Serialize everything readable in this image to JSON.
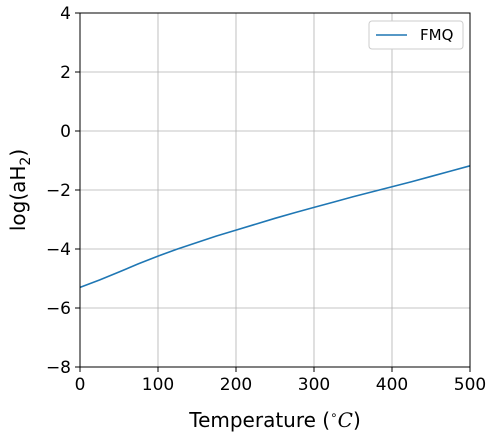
{
  "chart_data": {
    "type": "line",
    "title": "",
    "xlabel_main": "Temperature (",
    "xlabel_degree": "∘",
    "xlabel_unit": "C",
    "xlabel_close": ")",
    "ylabel_main": "log(aH",
    "ylabel_sub": "2",
    "ylabel_close": ")",
    "xlim": [
      0,
      500
    ],
    "ylim": [
      -8,
      4
    ],
    "xticks": [
      0,
      100,
      200,
      300,
      400,
      500
    ],
    "yticks": [
      -8,
      -6,
      -4,
      -2,
      0,
      2,
      4
    ],
    "xtick_labels": [
      "0",
      "100",
      "200",
      "300",
      "400",
      "500"
    ],
    "ytick_labels": [
      "−8",
      "−6",
      "−4",
      "−2",
      "0",
      "2",
      "4"
    ],
    "grid": true,
    "legend": {
      "placement": "top-right"
    },
    "series": [
      {
        "name": "FMQ",
        "color": "#1f77b4",
        "x": [
          0,
          25,
          50,
          75,
          100,
          125,
          150,
          175,
          200,
          225,
          250,
          275,
          300,
          325,
          350,
          375,
          400,
          425,
          450,
          475,
          500
        ],
        "y": [
          -5.3,
          -5.05,
          -4.78,
          -4.5,
          -4.24,
          -4.0,
          -3.78,
          -3.56,
          -3.36,
          -3.16,
          -2.96,
          -2.77,
          -2.59,
          -2.41,
          -2.23,
          -2.06,
          -1.89,
          -1.72,
          -1.54,
          -1.36,
          -1.18
        ]
      }
    ]
  }
}
